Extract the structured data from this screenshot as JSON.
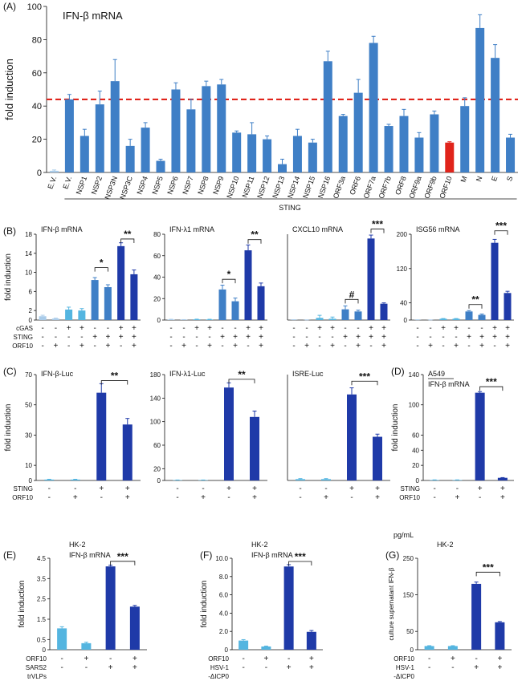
{
  "colors": {
    "dark": "#1f3aa8",
    "mid": "#3f7fc6",
    "light": "#54b5e0",
    "pale": "#a9cbe9",
    "red": "#e0241b",
    "refline": "#e0241b"
  },
  "chart_data": [
    {
      "panel": "(A)",
      "title": "IFN-β mRNA",
      "type": "bar",
      "ylabel": "fold induction",
      "ylim": [
        0,
        100
      ],
      "yticks": [
        "0",
        "20",
        "40",
        "60",
        "80",
        "100"
      ],
      "reference_line": 44,
      "categories": [
        "E.V.",
        "E.V.",
        "NSP1",
        "NSP2",
        "NSP3N",
        "NSP3C",
        "NSP4",
        "NSP5",
        "NSP6",
        "NSP7",
        "NSP8",
        "NSP9",
        "NSP10",
        "NSP11",
        "NSP12",
        "NSP13",
        "NSP14",
        "NSP15",
        "NSP16",
        "ORF3a",
        "ORF6",
        "ORF7a",
        "ORF7b",
        "ORF8",
        "ORF9a",
        "ORF9b",
        "ORF10",
        "M",
        "N",
        "E",
        "S"
      ],
      "values": [
        1,
        44,
        22,
        41,
        55,
        16,
        27,
        7,
        50,
        38,
        52,
        53,
        24,
        23,
        20,
        5,
        22,
        18,
        67,
        34,
        48,
        78,
        28,
        34,
        21,
        35,
        18,
        40,
        87,
        69,
        21
      ],
      "errors": [
        0.5,
        3,
        4,
        8,
        13,
        4,
        3,
        1,
        4,
        6,
        3,
        3,
        1,
        7,
        2,
        3,
        4,
        2,
        6,
        1,
        8,
        4,
        1,
        4,
        3,
        2,
        0.5,
        5,
        8,
        8,
        2
      ],
      "highlight": [
        26
      ],
      "bracket_label": "STING",
      "bracket_from": 1,
      "bracket_to": 30
    },
    {
      "panel": "(B)",
      "title": "IFN-β mRNA",
      "type": "bar",
      "ylabel": "fold induction",
      "ylim": [
        0,
        18
      ],
      "yticks": [
        {
          "v": 0,
          "t": "0"
        },
        {
          "v": 2,
          "t": "2"
        },
        {
          "v": 6,
          "t": "6"
        },
        {
          "v": 10,
          "t": "10"
        },
        {
          "v": 14,
          "t": "14"
        },
        {
          "v": 18,
          "t": "18"
        }
      ],
      "values": [
        0.8,
        0.3,
        2.2,
        2.0,
        8.4,
        6.9,
        15.5,
        9.6
      ],
      "errors": [
        0.2,
        0.1,
        0.5,
        0.4,
        0.5,
        0.5,
        0.7,
        0.9
      ],
      "colors": [
        "pale",
        "pale",
        "light",
        "light",
        "mid",
        "mid",
        "dark",
        "dark"
      ],
      "sig": [
        {
          "from": 4,
          "to": 5,
          "label": "*",
          "y": 11
        },
        {
          "from": 6,
          "to": 7,
          "label": "**",
          "y": 17
        }
      ],
      "conditions": [
        "cGAS",
        "STING",
        "ORF10"
      ],
      "signs": [
        [
          "-",
          "-",
          "+",
          "+",
          "-",
          "-",
          "+",
          "+"
        ],
        [
          "-",
          "-",
          "-",
          "-",
          "+",
          "+",
          "+",
          "+"
        ],
        [
          "-",
          "+",
          "-",
          "+",
          "-",
          "+",
          "-",
          "+"
        ]
      ]
    },
    {
      "panel": "",
      "title": "IFN-λ1 mRNA",
      "type": "bar",
      "ylim": [
        0,
        80
      ],
      "yticks": [
        {
          "v": 0,
          "t": "0"
        },
        {
          "v": 20,
          "t": "20"
        },
        {
          "v": 40,
          "t": "40"
        },
        {
          "v": 60,
          "t": "60"
        },
        {
          "v": 80,
          "t": "80"
        }
      ],
      "values": [
        0.5,
        0.3,
        0.6,
        0.5,
        28.5,
        17.5,
        65,
        31.5
      ],
      "errors": [
        0.2,
        0.1,
        0.2,
        0.2,
        4,
        3,
        5,
        3
      ],
      "colors": [
        "pale",
        "pale",
        "light",
        "light",
        "mid",
        "mid",
        "dark",
        "dark"
      ],
      "sig": [
        {
          "from": 4,
          "to": 5,
          "label": "*",
          "y": 38
        },
        {
          "from": 6,
          "to": 7,
          "label": "**",
          "y": 75
        }
      ],
      "signs": [
        [
          "-",
          "-",
          "+",
          "+",
          "-",
          "-",
          "+",
          "+"
        ],
        [
          "-",
          "-",
          "-",
          "-",
          "+",
          "+",
          "+",
          "+"
        ],
        [
          "-",
          "+",
          "-",
          "+",
          "-",
          "+",
          "-",
          "+"
        ]
      ]
    },
    {
      "panel": "",
      "title": "CXCL10 mRNA",
      "type": "bar",
      "ylim": [
        0,
        200
      ],
      "yticks": [],
      "values": [
        0.5,
        0.3,
        5,
        3,
        25,
        20,
        190,
        38
      ],
      "errors": [
        0.3,
        0.2,
        6,
        4,
        8,
        3,
        8,
        2
      ],
      "colors": [
        "pale",
        "pale",
        "light",
        "light",
        "mid",
        "mid",
        "dark",
        "dark"
      ],
      "sig": [
        {
          "from": 4,
          "to": 5,
          "label": "#",
          "y": 48
        },
        {
          "from": 6,
          "to": 7,
          "label": "***",
          "y": 212
        }
      ],
      "signs": [
        [
          "-",
          "-",
          "+",
          "+",
          "-",
          "-",
          "+",
          "+"
        ],
        [
          "-",
          "-",
          "-",
          "-",
          "+",
          "+",
          "+",
          "+"
        ],
        [
          "-",
          "+",
          "-",
          "+",
          "-",
          "+",
          "-",
          "+"
        ]
      ]
    },
    {
      "panel": "",
      "title": "ISG56 mRNA",
      "type": "bar",
      "ylim": [
        0,
        200
      ],
      "yticks": [
        {
          "v": 0,
          "t": "0"
        },
        {
          "v": 40,
          "t": "40"
        },
        {
          "v": 120,
          "t": "120"
        },
        {
          "v": 200,
          "t": "200"
        }
      ],
      "values": [
        0.5,
        0.3,
        3,
        3,
        20,
        12,
        180,
        63
      ],
      "errors": [
        0.2,
        0.1,
        0.5,
        0.5,
        2,
        2,
        8,
        4
      ],
      "colors": [
        "pale",
        "pale",
        "light",
        "light",
        "mid",
        "mid",
        "dark",
        "dark"
      ],
      "sig": [
        {
          "from": 4,
          "to": 5,
          "label": "**",
          "y": 36
        },
        {
          "from": 6,
          "to": 7,
          "label": "***",
          "y": 208
        }
      ],
      "signs": [
        [
          "-",
          "-",
          "+",
          "+",
          "-",
          "-",
          "+",
          "+"
        ],
        [
          "-",
          "-",
          "-",
          "-",
          "+",
          "+",
          "+",
          "+"
        ],
        [
          "-",
          "+",
          "-",
          "+",
          "-",
          "+",
          "-",
          "+"
        ]
      ]
    },
    {
      "panel": "(C)",
      "title": "IFN-β-Luc",
      "type": "bar",
      "ylabel": "fold induction",
      "ylim": [
        0,
        70
      ],
      "yticks": [
        {
          "v": 0,
          "t": "0"
        },
        {
          "v": 10,
          "t": "10"
        },
        {
          "v": 30,
          "t": "30"
        },
        {
          "v": 50,
          "t": "50"
        },
        {
          "v": 70,
          "t": "70"
        }
      ],
      "values": [
        0.6,
        0.6,
        58,
        37
      ],
      "errors": [
        0.2,
        0.2,
        6,
        4
      ],
      "colors": [
        "light",
        "light",
        "dark",
        "dark"
      ],
      "sig": [
        {
          "from": 2,
          "to": 3,
          "label": "**",
          "y": 66
        }
      ],
      "conditions": [
        "STING",
        "ORF10"
      ],
      "signs": [
        [
          "-",
          "-",
          "+",
          "+"
        ],
        [
          "-",
          "+",
          "-",
          "+"
        ]
      ]
    },
    {
      "panel": "",
      "title": "IFN-λ1-Luc",
      "type": "bar",
      "ylim": [
        0,
        180
      ],
      "yticks": [
        {
          "v": 0,
          "t": "0"
        },
        {
          "v": 20,
          "t": "20"
        },
        {
          "v": 60,
          "t": "60"
        },
        {
          "v": 100,
          "t": "100"
        },
        {
          "v": 140,
          "t": "140"
        },
        {
          "v": 180,
          "t": "180"
        }
      ],
      "values": [
        0.6,
        0.6,
        158,
        108
      ],
      "errors": [
        0.2,
        0.2,
        8,
        10
      ],
      "colors": [
        "light",
        "light",
        "dark",
        "dark"
      ],
      "sig": [
        {
          "from": 2,
          "to": 3,
          "label": "**",
          "y": 172
        }
      ],
      "signs": [
        [
          "-",
          "-",
          "+",
          "+"
        ],
        [
          "-",
          "+",
          "-",
          "+"
        ]
      ]
    },
    {
      "panel": "",
      "title": "ISRE-Luc",
      "type": "bar",
      "ylim": [
        0,
        40
      ],
      "yticks": [],
      "values": [
        0.5,
        0.5,
        32.5,
        16.5
      ],
      "errors": [
        0.2,
        0.2,
        2.5,
        1
      ],
      "colors": [
        "light",
        "light",
        "dark",
        "dark"
      ],
      "sig": [
        {
          "from": 2,
          "to": 3,
          "label": "***",
          "y": 37.5
        }
      ],
      "signs": [
        [
          "-",
          "-",
          "+",
          "+"
        ],
        [
          "-",
          "+",
          "-",
          "+"
        ]
      ]
    },
    {
      "panel": "(D)",
      "title": "A549",
      "subtitle": "IFN-β mRNA",
      "type": "bar",
      "ylabel": "fold induction",
      "ylim": [
        0,
        140
      ],
      "yticks": [
        {
          "v": 0,
          "t": "0"
        },
        {
          "v": 20,
          "t": "20"
        },
        {
          "v": 40,
          "t": "40"
        },
        {
          "v": 60,
          "t": "60"
        },
        {
          "v": 100,
          "t": "100"
        },
        {
          "v": 140,
          "t": "140"
        }
      ],
      "values": [
        0.6,
        0.6,
        116,
        3.5
      ],
      "errors": [
        0.2,
        0.2,
        1.5,
        0.3
      ],
      "colors": [
        "light",
        "light",
        "dark",
        "dark"
      ],
      "sig": [
        {
          "from": 2,
          "to": 3,
          "label": "***",
          "y": 124
        }
      ],
      "conditions": [
        "STING",
        "ORF10"
      ],
      "signs": [
        [
          "-",
          "-",
          "+",
          "+"
        ],
        [
          "-",
          "+",
          "-",
          "+"
        ]
      ]
    },
    {
      "panel": "(E)",
      "title": "HK-2",
      "subtitle": "IFN-β mRNA",
      "type": "bar",
      "ylabel": "fold induction",
      "ylim": [
        0,
        4.5
      ],
      "yticks": [
        {
          "v": 0,
          "t": "0"
        },
        {
          "v": 0.5,
          "t": "0.5"
        },
        {
          "v": 1.5,
          "t": "1.5"
        },
        {
          "v": 2.5,
          "t": "2.5"
        },
        {
          "v": 3.5,
          "t": "3.5"
        },
        {
          "v": 4.5,
          "t": "4.5"
        }
      ],
      "values": [
        1.05,
        0.32,
        4.1,
        2.12
      ],
      "errors": [
        0.08,
        0.05,
        0.06,
        0.06
      ],
      "colors": [
        "light",
        "light",
        "dark",
        "dark"
      ],
      "sig": [
        {
          "from": 2,
          "to": 3,
          "label": "***",
          "y": 4.35
        }
      ],
      "conditions": [
        "ORF10",
        "SARS2",
        "trVLPs"
      ],
      "signs": [
        [
          "-",
          "+",
          "-",
          "+"
        ],
        [
          "-",
          "-",
          "+",
          "+"
        ]
      ]
    },
    {
      "panel": "(F)",
      "title": "HK-2",
      "subtitle": "IFN-β mRNA",
      "type": "bar",
      "ylabel": "fold induction",
      "ylim": [
        0,
        10
      ],
      "yticks": [
        {
          "v": 0,
          "t": "0"
        },
        {
          "v": 2,
          "t": "2.0"
        },
        {
          "v": 4,
          "t": "4.0"
        },
        {
          "v": 6,
          "t": "6.0"
        },
        {
          "v": 8,
          "t": "8.0"
        },
        {
          "v": 10,
          "t": "10.0"
        }
      ],
      "values": [
        1.0,
        0.35,
        9.1,
        1.95
      ],
      "errors": [
        0.1,
        0.05,
        0.2,
        0.15
      ],
      "colors": [
        "light",
        "light",
        "dark",
        "dark"
      ],
      "sig": [
        {
          "from": 2,
          "to": 3,
          "label": "***",
          "y": 9.65
        }
      ],
      "conditions": [
        "ORF10",
        "HSV-1",
        "-ΔICP0"
      ],
      "signs": [
        [
          "-",
          "+",
          "-",
          "+"
        ],
        [
          "-",
          "-",
          "+",
          "+"
        ]
      ]
    },
    {
      "panel": "(G)",
      "title": "HK-2",
      "unit": "pg/mL",
      "type": "bar",
      "ylabel": "culture supernatant IFN-β",
      "ylim": [
        0,
        250
      ],
      "yticks": [
        {
          "v": 0,
          "t": "0"
        },
        {
          "v": 50,
          "t": "50"
        },
        {
          "v": 150,
          "t": "150"
        },
        {
          "v": 250,
          "t": "250"
        }
      ],
      "values": [
        10,
        10,
        180,
        75
      ],
      "errors": [
        1,
        1,
        5,
        2
      ],
      "colors": [
        "light",
        "light",
        "dark",
        "dark"
      ],
      "sig": [
        {
          "from": 2,
          "to": 3,
          "label": "***",
          "y": 212
        }
      ],
      "conditions": [
        "ORF10",
        "HSV-1",
        "-ΔICP0"
      ],
      "signs": [
        [
          "-",
          "+",
          "-",
          "+"
        ],
        [
          "-",
          "-",
          "+",
          "+"
        ]
      ]
    }
  ]
}
